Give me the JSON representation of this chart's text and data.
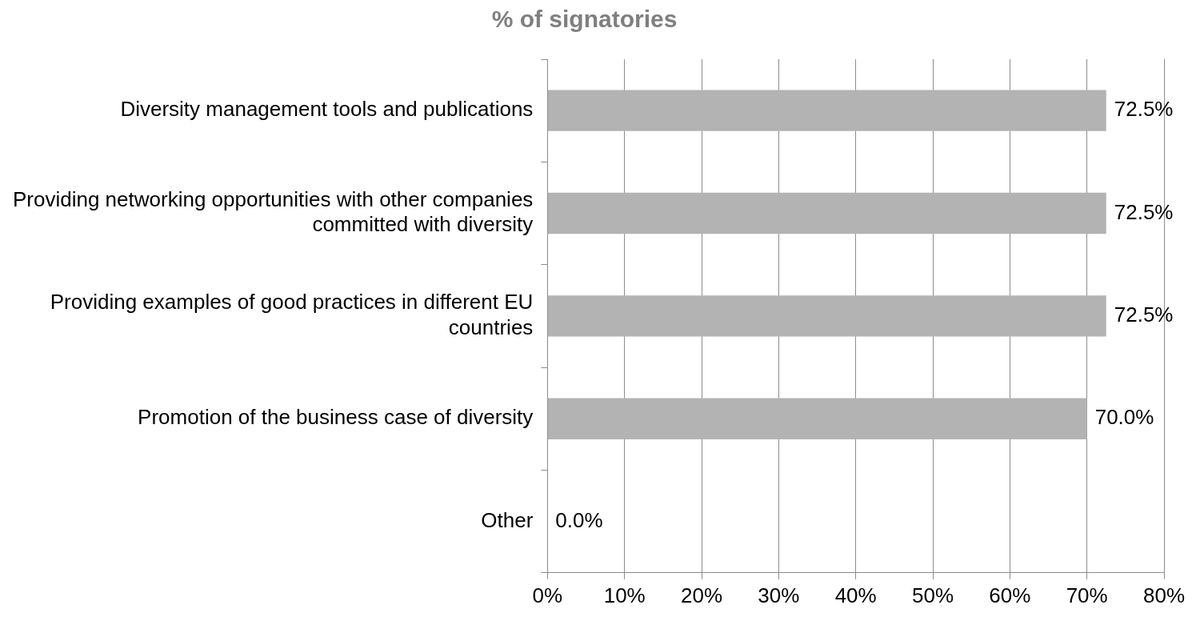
{
  "chart_data": {
    "type": "bar",
    "orientation": "horizontal",
    "title": "% of signatories",
    "categories": [
      "Diversity management tools and publications",
      "Providing networking opportunities with other companies committed with diversity",
      "Providing examples of good practices in different EU countries",
      "Promotion of the business case of diversity",
      "Other"
    ],
    "values": [
      72.5,
      72.5,
      72.5,
      70.0,
      0.0
    ],
    "value_labels": [
      "72.5%",
      "72.5%",
      "72.5%",
      "70.0%",
      "0.0%"
    ],
    "color": "#b3b3b3",
    "xlim": [
      0,
      80
    ],
    "xticks": [
      {
        "value": 0,
        "label": "0%"
      },
      {
        "value": 10,
        "label": "10%"
      },
      {
        "value": 20,
        "label": "20%"
      },
      {
        "value": 30,
        "label": "30%"
      },
      {
        "value": 40,
        "label": "40%"
      },
      {
        "value": 50,
        "label": "50%"
      },
      {
        "value": 60,
        "label": "60%"
      },
      {
        "value": 70,
        "label": "70%"
      },
      {
        "value": 80,
        "label": "80%"
      }
    ],
    "grid": "x"
  }
}
